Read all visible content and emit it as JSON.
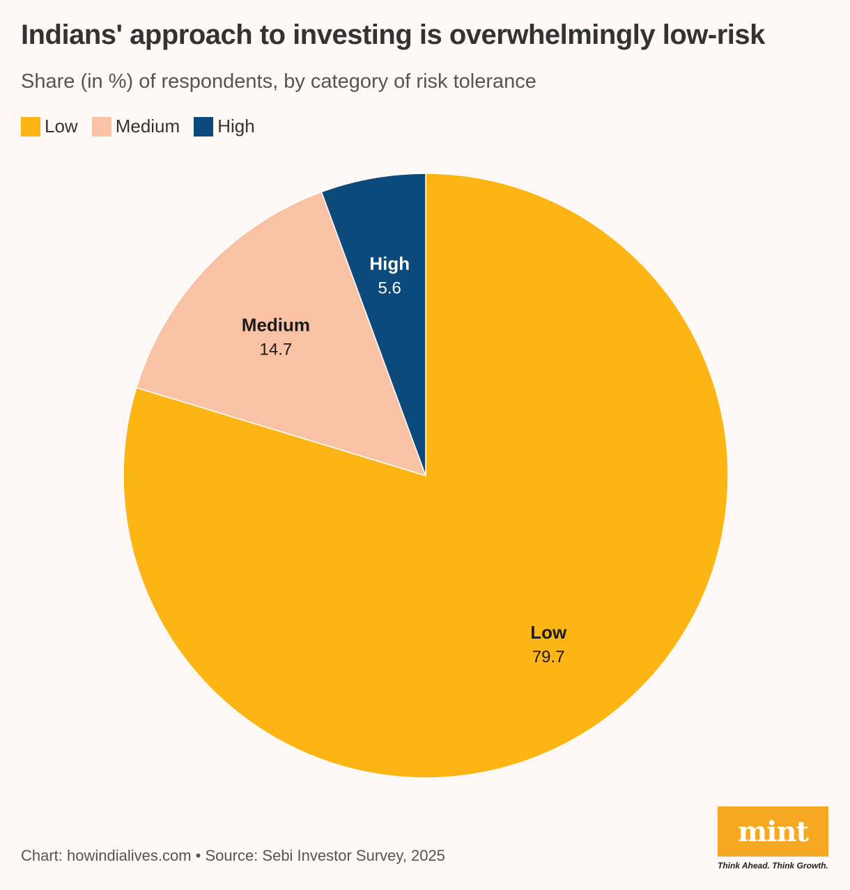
{
  "header": {
    "title": "Indians' approach to investing is overwhelmingly low-risk",
    "subtitle": "Share (in %) of respondents, by category of risk tolerance"
  },
  "legend": {
    "items": [
      {
        "label": "Low",
        "color": "#fdb516"
      },
      {
        "label": "Medium",
        "color": "#f9c2a5"
      },
      {
        "label": "High",
        "color": "#0b4a7a"
      }
    ]
  },
  "chart_data": {
    "type": "pie",
    "title": "Indians' approach to investing is overwhelmingly low-risk",
    "subtitle": "Share (in %) of respondents, by category of risk tolerance",
    "slices": [
      {
        "label": "Low",
        "value": 79.7,
        "color": "#fdb516",
        "label_color": "#1a1a1a"
      },
      {
        "label": "Medium",
        "value": 14.7,
        "color": "#f9c2a5",
        "label_color": "#1a1a1a"
      },
      {
        "label": "High",
        "value": 5.6,
        "color": "#0b4a7a",
        "label_color": "#ffffff"
      }
    ],
    "legend_position": "top-left",
    "start": "12 o'clock, clockwise"
  },
  "footer": {
    "source": "Chart: howindialives.com • Source: Sebi Investor Survey, 2025"
  },
  "logo": {
    "name": "mint",
    "tagline": "Think Ahead. Think Growth."
  }
}
